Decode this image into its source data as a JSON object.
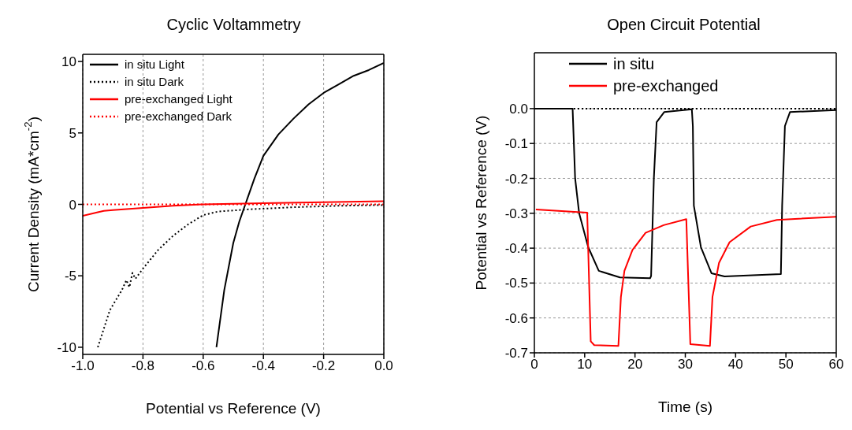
{
  "chart_data": [
    {
      "type": "line",
      "title": "Cyclic Voltammetry",
      "xlabel": "Potential vs Reference (V)",
      "ylabel": "Current Density (mA*cm$^{-2}$)",
      "xlim": [
        -1.0,
        0.0
      ],
      "xticks": [
        {
          "value": -1.0,
          "label": "-1.0"
        },
        -0.8,
        -0.6,
        -0.4,
        -0.2,
        {
          "value": 0.0,
          "label": "0.0"
        }
      ],
      "ylim": [
        -10.5,
        10.5
      ],
      "yticks": [
        -10,
        -5,
        0,
        5,
        10
      ],
      "grid": "x",
      "legend": "top left",
      "marker": "none",
      "series": [
        {
          "name": "in situ Light",
          "color": "#000000",
          "line_style": "solid",
          "x": [
            -0.556,
            -0.53,
            -0.5,
            -0.48,
            -0.46,
            -0.43,
            -0.4,
            -0.35,
            -0.3,
            -0.25,
            -0.2,
            -0.15,
            -0.1,
            -0.05,
            0
          ],
          "values": [
            -10,
            -6,
            -2.7,
            -1.2,
            0,
            1.8,
            3.4,
            4.9,
            6.0,
            7.0,
            7.8,
            8.4,
            9.0,
            9.4,
            9.9
          ]
        },
        {
          "name": "in situ Dark",
          "color": "#000000",
          "line_style": "dotted",
          "x": [
            -0.95,
            -0.91,
            -0.87,
            -0.855,
            -0.845,
            -0.835,
            -0.825,
            -0.8,
            -0.75,
            -0.7,
            -0.65,
            -0.6,
            -0.55,
            -0.45,
            -0.3,
            -0.15,
            0
          ],
          "values": [
            -10,
            -7.4,
            -6,
            -5.3,
            -5.8,
            -4.8,
            -5.2,
            -4.5,
            -3.2,
            -2.2,
            -1.4,
            -0.75,
            -0.5,
            -0.35,
            -0.2,
            -0.1,
            -0.05
          ]
        },
        {
          "name": "pre-exchanged Light",
          "color": "#ff0000",
          "line_style": "solid",
          "x": [
            -1,
            -0.95,
            -0.93,
            -0.9,
            -0.8,
            -0.7,
            -0.6,
            -0.4,
            -0.2,
            0
          ],
          "values": [
            -0.8,
            -0.55,
            -0.45,
            -0.4,
            -0.25,
            -0.1,
            0,
            0.08,
            0.15,
            0.22
          ]
        },
        {
          "name": "pre-exchanged Dark",
          "color": "#ff0000",
          "line_style": "dotted",
          "x": [
            -1,
            0
          ],
          "values": [
            0,
            0
          ]
        }
      ]
    },
    {
      "type": "line",
      "title": "Open Circuit Potential",
      "xlabel": "Time (s)",
      "ylabel": "Potential vs Reference (V)",
      "xlim": [
        0,
        60
      ],
      "xticks": [
        0,
        10,
        20,
        30,
        40,
        50,
        60
      ],
      "ylim": [
        -0.7,
        0.16
      ],
      "yticks": [
        {
          "value": 0,
          "label": "0.0"
        },
        -0.1,
        -0.2,
        -0.3,
        -0.4,
        -0.5,
        -0.6,
        -0.7
      ],
      "grid": "y",
      "legend": "top",
      "marker": "none",
      "ref_lines": [
        {
          "axis": "y",
          "value": 0,
          "color": "#000000",
          "line_style": "dotted"
        }
      ],
      "series": [
        {
          "name": "in situ",
          "color": "#000000",
          "line_style": "solid",
          "x": [
            0,
            7.6,
            8.1,
            8.9,
            10.7,
            12.8,
            17.0,
            23.0,
            23.2,
            23.75,
            24.3,
            25.8,
            31.3,
            31.5,
            31.7,
            33.1,
            35.2,
            37.8,
            49.0,
            49.25,
            49.8,
            50.8,
            60
          ],
          "values": [
            0,
            0,
            -0.2,
            -0.3,
            -0.397,
            -0.465,
            -0.484,
            -0.486,
            -0.48,
            -0.2,
            -0.039,
            -0.01,
            -0.002,
            -0.05,
            -0.278,
            -0.397,
            -0.472,
            -0.481,
            -0.474,
            -0.278,
            -0.05,
            -0.01,
            -0.004
          ]
        },
        {
          "name": "pre-exchanged",
          "color": "#ff0000",
          "line_style": "solid",
          "x": [
            0.3,
            10.5,
            11.2,
            11.9,
            16.7,
            17.2,
            17.9,
            19.5,
            22.1,
            25.7,
            30.2,
            31.0,
            34.9,
            35.4,
            36.7,
            38.8,
            43.0,
            48.2,
            60
          ],
          "values": [
            -0.289,
            -0.298,
            -0.667,
            -0.678,
            -0.68,
            -0.54,
            -0.465,
            -0.405,
            -0.356,
            -0.334,
            -0.317,
            -0.675,
            -0.68,
            -0.54,
            -0.442,
            -0.383,
            -0.338,
            -0.319,
            -0.31
          ]
        }
      ]
    }
  ]
}
